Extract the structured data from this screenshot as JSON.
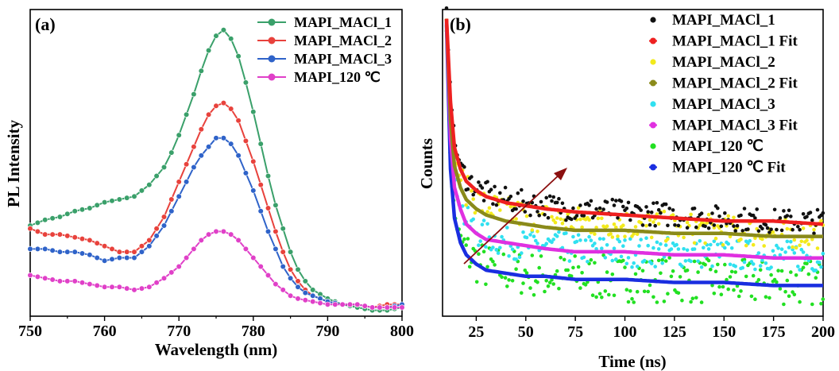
{
  "chart_data": [
    {
      "panel_label": "(a)",
      "type": "line",
      "xlabel": "Wavelength (nm)",
      "ylabel": "PL Intensity",
      "xlim": [
        750,
        800
      ],
      "ylim": [
        0,
        1.05
      ],
      "xticks": [
        "750",
        "760",
        "770",
        "780",
        "790",
        "800"
      ],
      "yticks_shown": false,
      "legend_position": "top-right",
      "series": [
        {
          "name": "MAPI_MACl_1",
          "color": "#3aa06a",
          "x": [
            750,
            752,
            754,
            756,
            758,
            760,
            762,
            764,
            766,
            768,
            769,
            770,
            771,
            772,
            773,
            774,
            775,
            776,
            777,
            778,
            779,
            780,
            781,
            782,
            783,
            784,
            785,
            786,
            787,
            788,
            790,
            792,
            794,
            796,
            798,
            800
          ],
          "y": [
            0.31,
            0.33,
            0.34,
            0.36,
            0.37,
            0.39,
            0.4,
            0.41,
            0.45,
            0.51,
            0.56,
            0.62,
            0.69,
            0.76,
            0.84,
            0.91,
            0.96,
            0.98,
            0.95,
            0.89,
            0.8,
            0.7,
            0.59,
            0.48,
            0.38,
            0.3,
            0.22,
            0.16,
            0.12,
            0.09,
            0.06,
            0.04,
            0.03,
            0.02,
            0.02,
            0.03
          ]
        },
        {
          "name": "MAPI_MACl_2",
          "color": "#e8423c",
          "x": [
            750,
            752,
            754,
            756,
            758,
            760,
            762,
            764,
            766,
            768,
            769,
            770,
            771,
            772,
            773,
            774,
            775,
            776,
            777,
            778,
            779,
            780,
            781,
            782,
            783,
            784,
            785,
            786,
            787,
            788,
            790,
            792,
            794,
            796,
            798,
            800
          ],
          "y": [
            0.3,
            0.28,
            0.28,
            0.27,
            0.26,
            0.24,
            0.22,
            0.22,
            0.26,
            0.34,
            0.4,
            0.46,
            0.52,
            0.58,
            0.64,
            0.69,
            0.72,
            0.73,
            0.71,
            0.67,
            0.6,
            0.53,
            0.45,
            0.37,
            0.29,
            0.22,
            0.16,
            0.12,
            0.09,
            0.07,
            0.05,
            0.04,
            0.04,
            0.03,
            0.04,
            0.04
          ]
        },
        {
          "name": "MAPI_MACl_3",
          "color": "#2f63c9",
          "x": [
            750,
            752,
            754,
            756,
            758,
            760,
            762,
            764,
            766,
            768,
            769,
            770,
            771,
            772,
            773,
            774,
            775,
            776,
            777,
            778,
            779,
            780,
            781,
            782,
            783,
            784,
            785,
            786,
            787,
            788,
            790,
            792,
            794,
            796,
            798,
            800
          ],
          "y": [
            0.23,
            0.23,
            0.22,
            0.22,
            0.21,
            0.19,
            0.2,
            0.2,
            0.24,
            0.31,
            0.36,
            0.41,
            0.46,
            0.51,
            0.55,
            0.58,
            0.61,
            0.61,
            0.59,
            0.55,
            0.49,
            0.43,
            0.36,
            0.29,
            0.23,
            0.17,
            0.13,
            0.1,
            0.08,
            0.07,
            0.05,
            0.04,
            0.04,
            0.03,
            0.03,
            0.04
          ]
        },
        {
          "name": "MAPI_120 ℃",
          "color": "#e040c8",
          "x": [
            750,
            752,
            754,
            756,
            758,
            760,
            762,
            764,
            766,
            768,
            770,
            771,
            772,
            773,
            774,
            775,
            776,
            777,
            778,
            779,
            780,
            781,
            782,
            783,
            784,
            785,
            786,
            788,
            790,
            792,
            794,
            796,
            798,
            800
          ],
          "y": [
            0.14,
            0.13,
            0.12,
            0.12,
            0.11,
            0.1,
            0.1,
            0.09,
            0.1,
            0.13,
            0.17,
            0.2,
            0.23,
            0.26,
            0.28,
            0.29,
            0.29,
            0.28,
            0.26,
            0.23,
            0.2,
            0.17,
            0.14,
            0.11,
            0.09,
            0.07,
            0.06,
            0.05,
            0.04,
            0.04,
            0.04,
            0.03,
            0.03,
            0.03
          ]
        }
      ]
    },
    {
      "panel_label": "(b)",
      "type": "scatter",
      "xlabel": "Time (ns)",
      "ylabel": "Counts",
      "xlim": [
        8,
        200
      ],
      "ylim": [
        0,
        1
      ],
      "xticks": [
        "25",
        "50",
        "75",
        "100",
        "125",
        "150",
        "175",
        "200"
      ],
      "xtick_values": [
        25,
        50,
        75,
        100,
        125,
        150,
        175,
        200
      ],
      "yticks_shown": false,
      "legend_position": "top-right",
      "annotation": "arrow pointing from the lowest decay to the highest",
      "series": [
        {
          "name": "MAPI_MACl_1",
          "color": "#111111",
          "style": "points",
          "x": [
            10,
            12,
            14,
            17,
            20,
            25,
            30,
            40,
            50,
            60,
            75,
            100,
            125,
            150,
            175,
            200
          ],
          "y": [
            0.99,
            0.75,
            0.57,
            0.49,
            0.45,
            0.42,
            0.4,
            0.38,
            0.37,
            0.36,
            0.35,
            0.34,
            0.33,
            0.32,
            0.31,
            0.31
          ]
        },
        {
          "name": "MAPI_MACl_1 Fit",
          "color": "#ee2020",
          "style": "fit",
          "x": [
            10,
            12,
            14,
            17,
            20,
            25,
            30,
            40,
            50,
            60,
            75,
            100,
            125,
            150,
            175,
            200
          ],
          "y": [
            0.97,
            0.7,
            0.55,
            0.48,
            0.44,
            0.41,
            0.39,
            0.37,
            0.36,
            0.35,
            0.34,
            0.33,
            0.32,
            0.31,
            0.31,
            0.3
          ]
        },
        {
          "name": "MAPI_MACl_2",
          "color": "#f2ea1c",
          "style": "points",
          "x": [
            10,
            12,
            14,
            17,
            20,
            25,
            30,
            40,
            50,
            60,
            75,
            100,
            125,
            150,
            175,
            200
          ],
          "y": [
            0.98,
            0.68,
            0.52,
            0.45,
            0.41,
            0.38,
            0.36,
            0.34,
            0.33,
            0.32,
            0.31,
            0.3,
            0.29,
            0.28,
            0.27,
            0.27
          ]
        },
        {
          "name": "MAPI_MACl_2 Fit",
          "color": "#8a8a1a",
          "style": "fit",
          "x": [
            10,
            12,
            14,
            17,
            20,
            25,
            30,
            40,
            50,
            60,
            75,
            100,
            125,
            150,
            175,
            200
          ],
          "y": [
            0.97,
            0.64,
            0.49,
            0.42,
            0.38,
            0.35,
            0.33,
            0.31,
            0.3,
            0.29,
            0.28,
            0.28,
            0.27,
            0.27,
            0.26,
            0.26
          ]
        },
        {
          "name": "MAPI_MACl_3",
          "color": "#30e0f0",
          "style": "points",
          "x": [
            10,
            12,
            14,
            17,
            20,
            25,
            30,
            40,
            50,
            60,
            75,
            100,
            125,
            150,
            175,
            200
          ],
          "y": [
            0.97,
            0.6,
            0.44,
            0.36,
            0.31,
            0.28,
            0.26,
            0.24,
            0.23,
            0.23,
            0.22,
            0.21,
            0.21,
            0.2,
            0.2,
            0.19
          ]
        },
        {
          "name": "MAPI_MACl_3 Fit",
          "color": "#e030e0",
          "style": "fit",
          "x": [
            10,
            12,
            14,
            17,
            20,
            25,
            30,
            40,
            50,
            60,
            75,
            100,
            125,
            150,
            175,
            200
          ],
          "y": [
            0.96,
            0.58,
            0.42,
            0.35,
            0.3,
            0.27,
            0.25,
            0.24,
            0.23,
            0.22,
            0.21,
            0.21,
            0.2,
            0.2,
            0.19,
            0.19
          ]
        },
        {
          "name": "MAPI_120 ℃",
          "color": "#22e022",
          "style": "points",
          "x": [
            10,
            12,
            14,
            17,
            20,
            25,
            30,
            40,
            50,
            60,
            75,
            100,
            125,
            150,
            175,
            200
          ],
          "y": [
            0.96,
            0.5,
            0.33,
            0.25,
            0.21,
            0.18,
            0.16,
            0.15,
            0.14,
            0.13,
            0.13,
            0.12,
            0.12,
            0.11,
            0.11,
            0.11
          ]
        },
        {
          "name": "MAPI_120 ℃ Fit",
          "color": "#1a2ee0",
          "style": "fit",
          "x": [
            10,
            12,
            14,
            17,
            20,
            25,
            30,
            40,
            50,
            60,
            75,
            100,
            125,
            150,
            175,
            200
          ],
          "y": [
            0.95,
            0.48,
            0.32,
            0.24,
            0.2,
            0.17,
            0.15,
            0.14,
            0.13,
            0.13,
            0.12,
            0.12,
            0.11,
            0.11,
            0.1,
            0.1
          ]
        }
      ]
    }
  ]
}
